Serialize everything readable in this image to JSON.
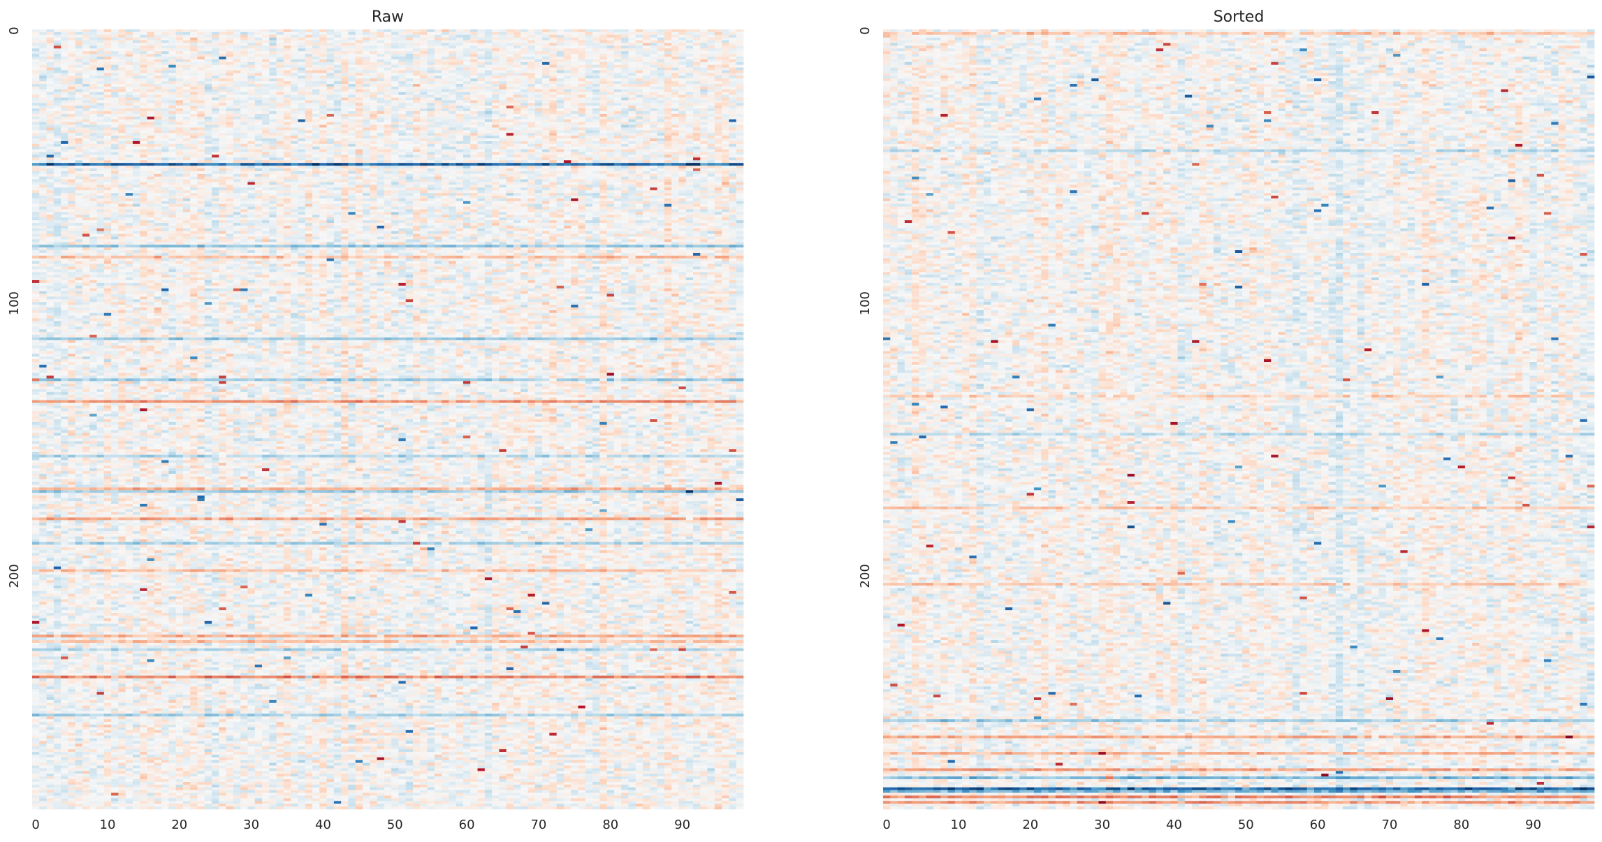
{
  "chart_data": [
    {
      "type": "heatmap",
      "title": "Raw",
      "xlabel": "",
      "ylabel": "",
      "n_rows": 286,
      "n_cols": 99,
      "x_ticks": [
        "0",
        "10",
        "20",
        "30",
        "40",
        "50",
        "60",
        "70",
        "80",
        "90"
      ],
      "y_ticks": [
        "0",
        "100",
        "200"
      ],
      "colormap": "RdBu_r",
      "colorbar": false,
      "strong_rows": [
        {
          "row": 49,
          "value": -2.6
        },
        {
          "row": 79,
          "value": -0.9
        },
        {
          "row": 83,
          "value": 0.6
        },
        {
          "row": 113,
          "value": -0.8
        },
        {
          "row": 128,
          "value": -0.8
        },
        {
          "row": 136,
          "value": 1.2
        },
        {
          "row": 156,
          "value": -0.6
        },
        {
          "row": 168,
          "value": 0.7
        },
        {
          "row": 169,
          "value": -0.8
        },
        {
          "row": 179,
          "value": 0.9
        },
        {
          "row": 188,
          "value": -0.7
        },
        {
          "row": 198,
          "value": 0.6
        },
        {
          "row": 222,
          "value": 0.8
        },
        {
          "row": 224,
          "value": 0.6
        },
        {
          "row": 227,
          "value": -0.6
        },
        {
          "row": 237,
          "value": 1.4
        },
        {
          "row": 251,
          "value": -0.7
        }
      ]
    },
    {
      "type": "heatmap",
      "title": "Sorted",
      "xlabel": "",
      "ylabel": "",
      "n_rows": 286,
      "n_cols": 99,
      "x_ticks": [
        "0",
        "10",
        "20",
        "30",
        "40",
        "50",
        "60",
        "70",
        "80",
        "90"
      ],
      "y_ticks": [
        "0",
        "100",
        "200"
      ],
      "colormap": "RdBu_r",
      "colorbar": false,
      "strong_rows": [
        {
          "row": 1,
          "value": 0.5
        },
        {
          "row": 44,
          "value": -0.5
        },
        {
          "row": 134,
          "value": 0.4
        },
        {
          "row": 148,
          "value": -0.5
        },
        {
          "row": 175,
          "value": 0.5
        },
        {
          "row": 203,
          "value": 0.5
        },
        {
          "row": 253,
          "value": -0.8
        },
        {
          "row": 259,
          "value": 0.9
        },
        {
          "row": 265,
          "value": 0.7
        },
        {
          "row": 271,
          "value": 1.0
        },
        {
          "row": 274,
          "value": -1.2
        },
        {
          "row": 278,
          "value": -2.6
        },
        {
          "row": 279,
          "value": -1.3
        },
        {
          "row": 281,
          "value": 1.3
        },
        {
          "row": 283,
          "value": 1.1
        }
      ]
    }
  ]
}
